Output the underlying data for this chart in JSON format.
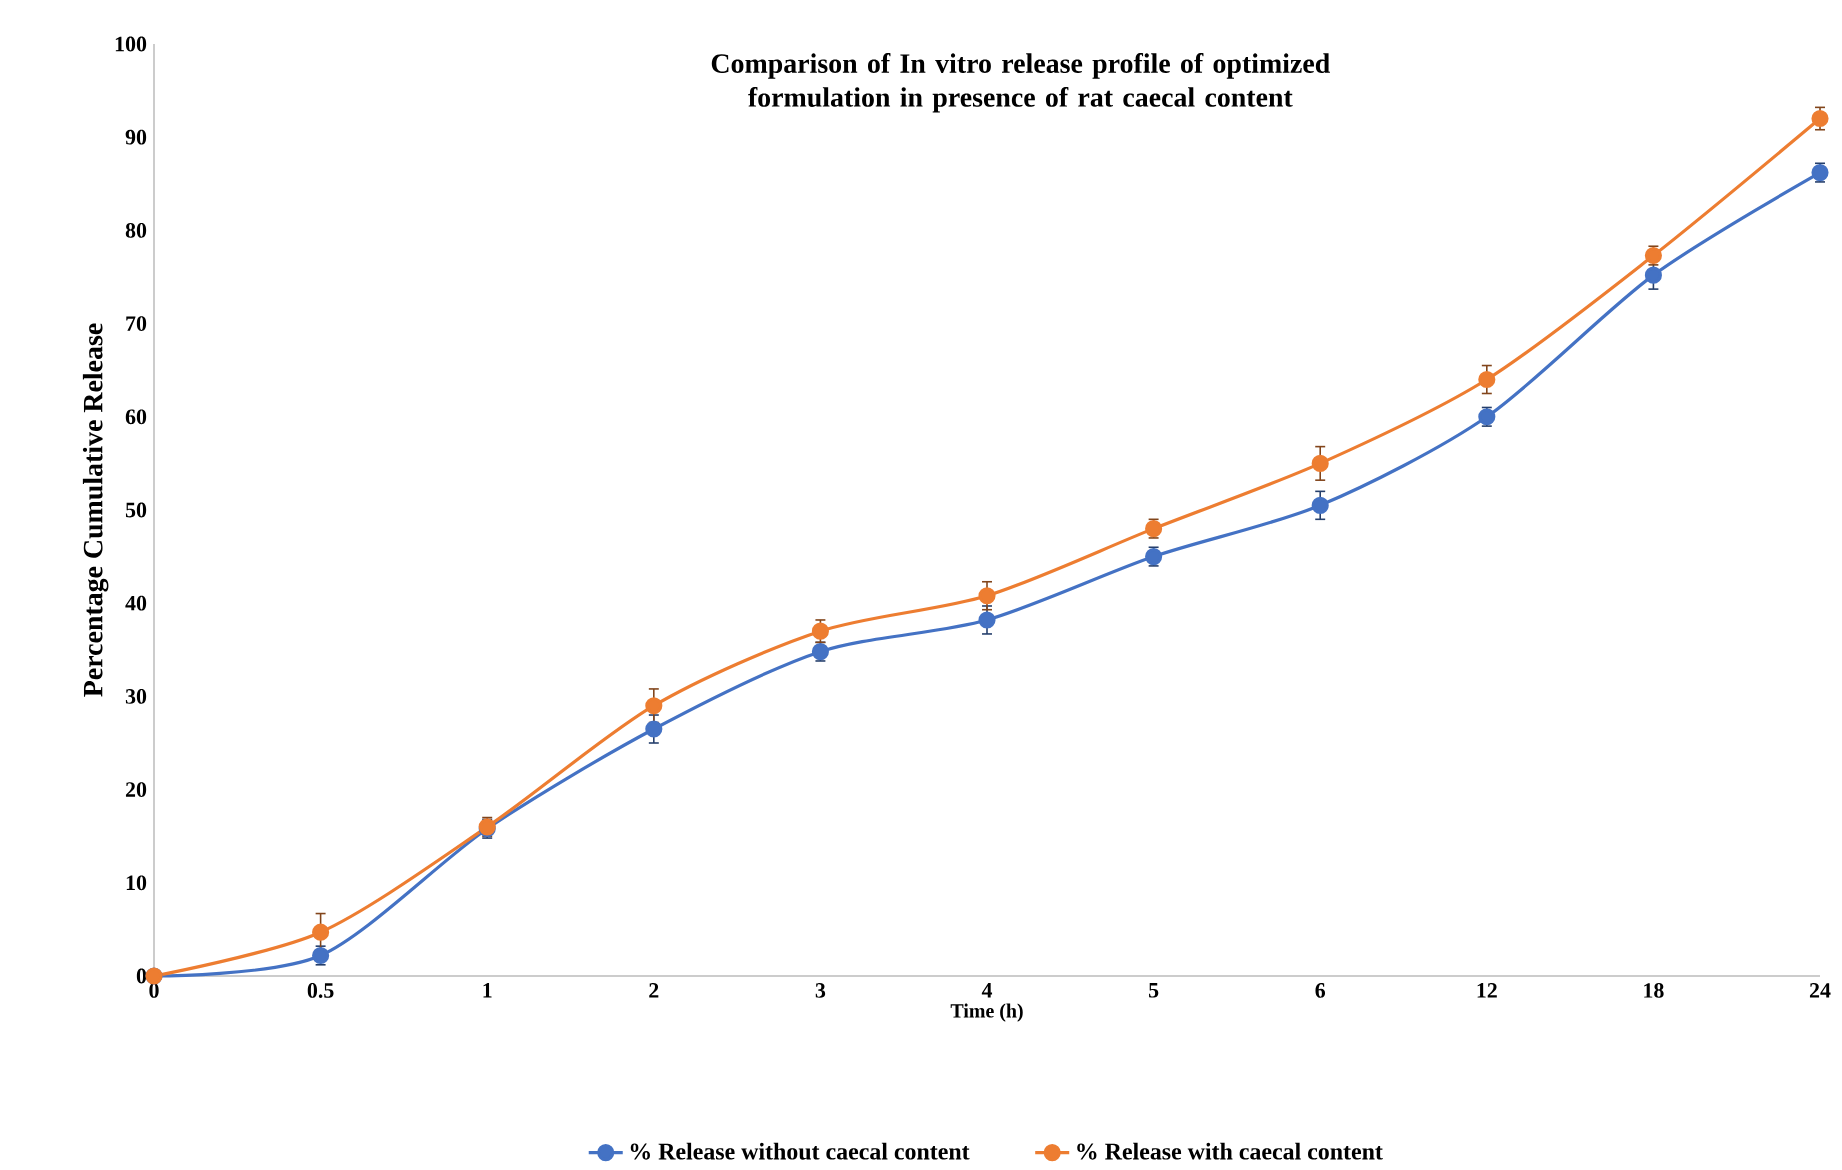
{
  "chart_data": {
    "type": "line",
    "title": "Comparison of In vitro release profile of optimized formulation in presence of rat caecal content",
    "xlabel": "Time (h)",
    "ylabel": "Percentage Cumulative Release",
    "categories": [
      "0",
      "0.5",
      "1",
      "2",
      "3",
      "4",
      "5",
      "6",
      "12",
      "18",
      "24"
    ],
    "ylim": [
      0,
      100
    ],
    "yticks": [
      0,
      10,
      20,
      30,
      40,
      50,
      60,
      70,
      80,
      90,
      100
    ],
    "series": [
      {
        "name": "% Release without caecal content",
        "color": "#4472c4",
        "values": [
          0,
          2.2,
          15.8,
          26.5,
          34.8,
          38.2,
          45,
          50.5,
          60,
          75.2,
          86.2
        ],
        "errors": [
          null,
          1,
          1,
          1.5,
          1,
          1.5,
          1,
          1.5,
          1,
          1.5,
          1
        ]
      },
      {
        "name": "% Release with caecal content",
        "color": "#ed7d31",
        "values": [
          0,
          4.7,
          16,
          29,
          37,
          40.8,
          48,
          55,
          64,
          77.3,
          92
        ],
        "errors": [
          null,
          2,
          1,
          1.8,
          1.2,
          1.5,
          1,
          1.8,
          1.5,
          1,
          1.2
        ]
      }
    ],
    "marker": "circle",
    "legend": "bottom",
    "grid": false
  }
}
